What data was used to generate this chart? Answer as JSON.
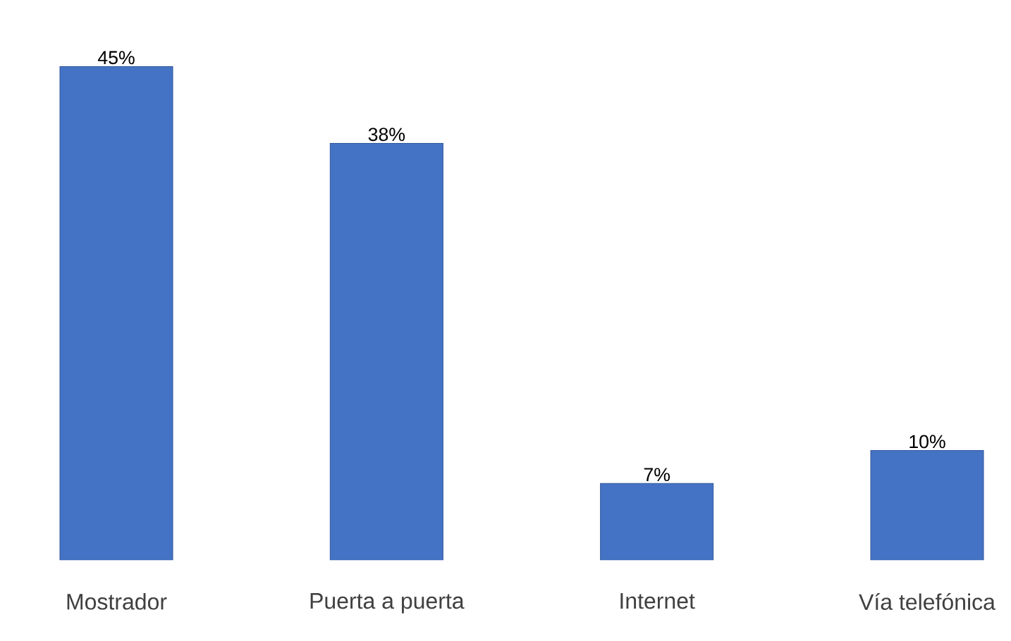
{
  "chart_data": {
    "type": "bar",
    "categories": [
      "Mostrador",
      "Puerta a puerta",
      "Internet",
      "Vía telefónica"
    ],
    "values": [
      45,
      38,
      7,
      10
    ],
    "value_labels": [
      "45%",
      "38%",
      "7%",
      "10%"
    ],
    "color": "#4472c4"
  }
}
